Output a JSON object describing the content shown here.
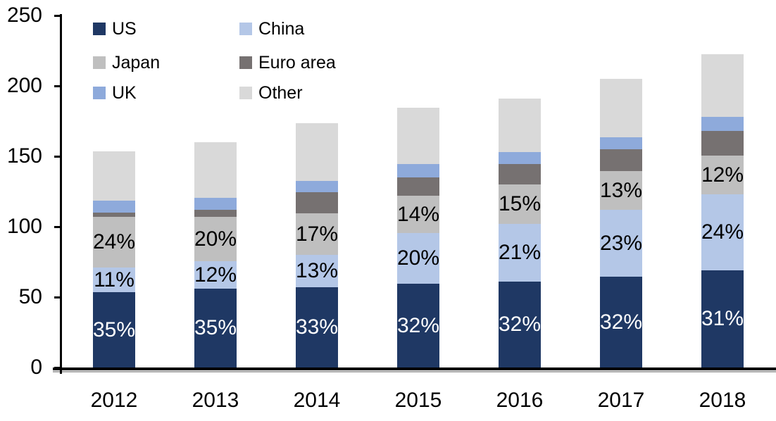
{
  "chart_data": {
    "type": "bar",
    "stacked": true,
    "title": "",
    "x": [
      "2012",
      "2013",
      "2014",
      "2015",
      "2016",
      "2017",
      "2018"
    ],
    "series": [
      {
        "name": "US",
        "color": "#1F3864",
        "values": [
          53.5,
          56,
          57,
          59.5,
          61,
          64.5,
          69
        ],
        "labels": [
          "35%",
          "35%",
          "33%",
          "32%",
          "32%",
          "32%",
          "31%"
        ],
        "label_color": "#FFFFFF"
      },
      {
        "name": "China",
        "color": "#B4C7E7",
        "values": [
          17.5,
          19.5,
          23,
          36,
          41,
          47.5,
          54
        ],
        "labels": [
          "11%",
          "12%",
          "13%",
          "20%",
          "21%",
          "23%",
          "24%"
        ],
        "label_color": "#000000"
      },
      {
        "name": "Japan",
        "color": "#BFBFBF",
        "values": [
          36,
          31.5,
          29.5,
          26.5,
          28,
          27.5,
          27.5
        ],
        "labels": [
          "24%",
          "20%",
          "17%",
          "14%",
          "15%",
          "13%",
          "12%"
        ],
        "label_color": "#000000"
      },
      {
        "name": "Euro area",
        "color": "#767171",
        "values": [
          3,
          5,
          15,
          13,
          14.5,
          15.5,
          17.5
        ]
      },
      {
        "name": "UK",
        "color": "#8EAADB",
        "values": [
          8.5,
          8.5,
          8,
          9.5,
          8.5,
          8.5,
          10
        ]
      },
      {
        "name": "Other",
        "color": "#D9D9D9",
        "values": [
          35,
          39.5,
          41,
          40,
          38,
          41.5,
          44.5
        ]
      }
    ],
    "totals": [
      153.5,
      160,
      173.5,
      184.5,
      191,
      205,
      222.5
    ],
    "xlabel": "",
    "ylabel": "",
    "ylim": [
      0,
      250
    ],
    "yticks": [
      0,
      50,
      100,
      150,
      200,
      250
    ],
    "grid": false,
    "legend": {
      "position": "top-left",
      "columns": 2,
      "row_order": [
        "US",
        "China",
        "Japan",
        "Euro area",
        "UK",
        "Other"
      ]
    }
  },
  "axis": {
    "line_color": "#000000",
    "shadow_color": "#A6A6A6"
  }
}
